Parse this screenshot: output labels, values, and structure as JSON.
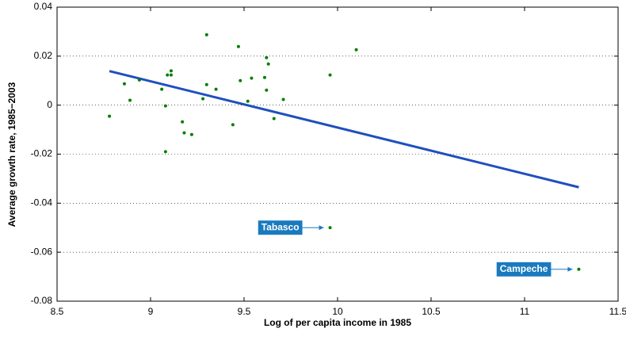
{
  "chart_data": {
    "type": "scatter",
    "x_label": "Log of per capita income in 1985",
    "y_label": "Average growth rate, 1985−2003",
    "x": [
      8.78,
      8.86,
      8.89,
      8.94,
      9.06,
      9.08,
      9.08,
      9.09,
      9.11,
      9.11,
      9.17,
      9.18,
      9.22,
      9.28,
      9.3,
      9.3,
      9.35,
      9.44,
      9.47,
      9.48,
      9.52,
      9.54,
      9.61,
      9.62,
      9.63,
      9.62,
      9.66,
      9.71,
      9.96,
      10.1,
      9.96,
      11.29
    ],
    "values": [
      -0.0045,
      0.0087,
      0.002,
      0.0103,
      0.0065,
      -0.0003,
      -0.019,
      0.0123,
      0.0123,
      0.014,
      -0.0068,
      -0.0113,
      -0.012,
      0.0026,
      0.0287,
      0.0084,
      0.0065,
      -0.008,
      0.0239,
      0.01,
      0.0016,
      0.011,
      0.0113,
      0.0194,
      0.0168,
      0.0061,
      -0.0055,
      0.0023,
      0.0123,
      0.0226,
      -0.05,
      -0.067
    ],
    "color": "#007f00",
    "fit_line": {
      "x": [
        8.78,
        11.29
      ],
      "values": [
        0.0139,
        -0.0335
      ],
      "color": "#1f4fbf"
    },
    "annotations": [
      {
        "text": "Tabasco",
        "x": 9.96,
        "y": -0.05
      },
      {
        "text": "Campeche",
        "x": 11.29,
        "y": -0.067
      }
    ],
    "annotation_color": "#1a7abf",
    "xlim": [
      8.5,
      11.5
    ],
    "xticks": [
      8.5,
      9,
      9.5,
      10,
      10.5,
      11,
      11.5
    ],
    "ylim": [
      -0.08,
      0.04
    ],
    "yticks": [
      -0.08,
      -0.06,
      -0.04,
      -0.02,
      0,
      0.02,
      0.04
    ],
    "grid": "y"
  }
}
